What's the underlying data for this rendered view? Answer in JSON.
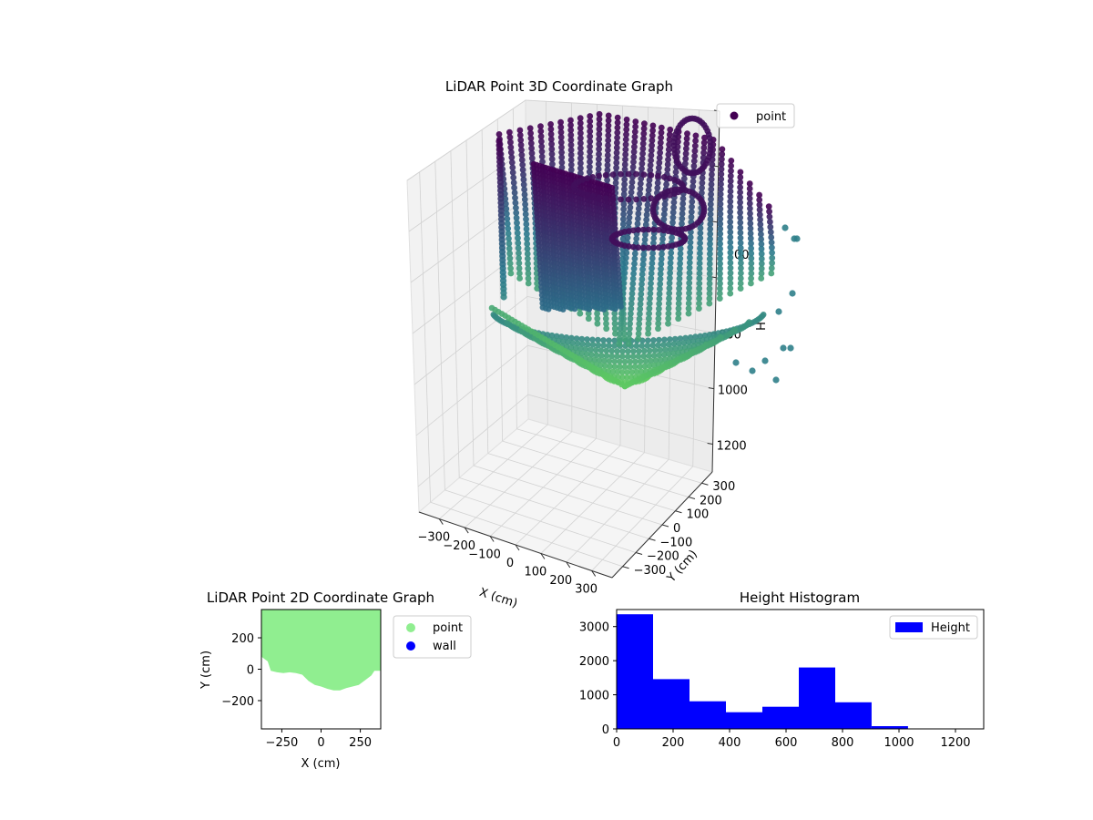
{
  "colors": {
    "cmap_top": "#440154",
    "cmap_mid": "#2a788e",
    "cmap_bottom": "#5ec962",
    "scatter2d_point": "#90ee90",
    "scatter2d_wall": "#0000ff",
    "histogram": "#0000ff"
  },
  "chart_data": [
    {
      "type": "scatter3d",
      "title": "LiDAR Point 3D Coordinate Graph",
      "xlabel": "X (cm)",
      "ylabel": "Y (cm)",
      "zlabel": "H",
      "xlim": [
        -380,
        380
      ],
      "ylim": [
        -380,
        380
      ],
      "zlim": [
        1300,
        0
      ],
      "x_ticks": [
        "−300",
        "−200",
        "−100",
        "0",
        "100",
        "200",
        "300"
      ],
      "y_ticks": [
        "−300",
        "−200",
        "−100",
        "0",
        "100",
        "200",
        "300"
      ],
      "z_ticks": [
        "800",
        "1000",
        "1200"
      ],
      "z_ticks_partial": [
        "00"
      ],
      "legend": [
        "point"
      ],
      "legend_position": "top-right",
      "colormap": "viridis",
      "grid": true,
      "series": [
        {
          "name": "point",
          "color_by": "height",
          "approx_height_range": [
            0,
            1050
          ]
        }
      ]
    },
    {
      "type": "scatter",
      "title": "LiDAR Point 2D Coordinate Graph",
      "xlabel": "X (cm)",
      "ylabel": "Y (cm)",
      "xlim": [
        -380,
        380
      ],
      "ylim": [
        -380,
        380
      ],
      "x_ticks": [
        "−250",
        "0",
        "250"
      ],
      "y_ticks": [
        "200",
        "0",
        "−200"
      ],
      "legend": [
        "point",
        "wall"
      ],
      "legend_position": "outside-right",
      "series": [
        {
          "name": "point",
          "boundary_bottom": [
            [
              -380,
              80
            ],
            [
              -340,
              50
            ],
            [
              -320,
              -10
            ],
            [
              -280,
              -20
            ],
            [
              -240,
              -25
            ],
            [
              -200,
              -20
            ],
            [
              -160,
              -25
            ],
            [
              -120,
              -35
            ],
            [
              -80,
              -75
            ],
            [
              -40,
              -100
            ],
            [
              0,
              -110
            ],
            [
              40,
              -125
            ],
            [
              80,
              -135
            ],
            [
              120,
              -135
            ],
            [
              160,
              -120
            ],
            [
              200,
              -110
            ],
            [
              240,
              -100
            ],
            [
              280,
              -70
            ],
            [
              320,
              -40
            ],
            [
              340,
              -10
            ],
            [
              380,
              -10
            ]
          ],
          "ymax": 380
        },
        {
          "name": "wall",
          "points": []
        }
      ]
    },
    {
      "type": "bar",
      "title": "Height Histogram",
      "xlim": [
        0,
        1300
      ],
      "ylim": [
        0,
        3500
      ],
      "x_ticks": [
        "0",
        "200",
        "400",
        "600",
        "800",
        "1000",
        "1200"
      ],
      "y_ticks": [
        "0",
        "1000",
        "2000",
        "3000"
      ],
      "legend": [
        "Height"
      ],
      "legend_position": "top-right",
      "bin_edges": [
        0,
        129,
        258,
        387,
        516,
        645,
        774,
        903,
        1032
      ],
      "values": [
        3360,
        1460,
        810,
        490,
        650,
        1800,
        780,
        80
      ],
      "series": [
        {
          "name": "Height"
        }
      ]
    }
  ]
}
